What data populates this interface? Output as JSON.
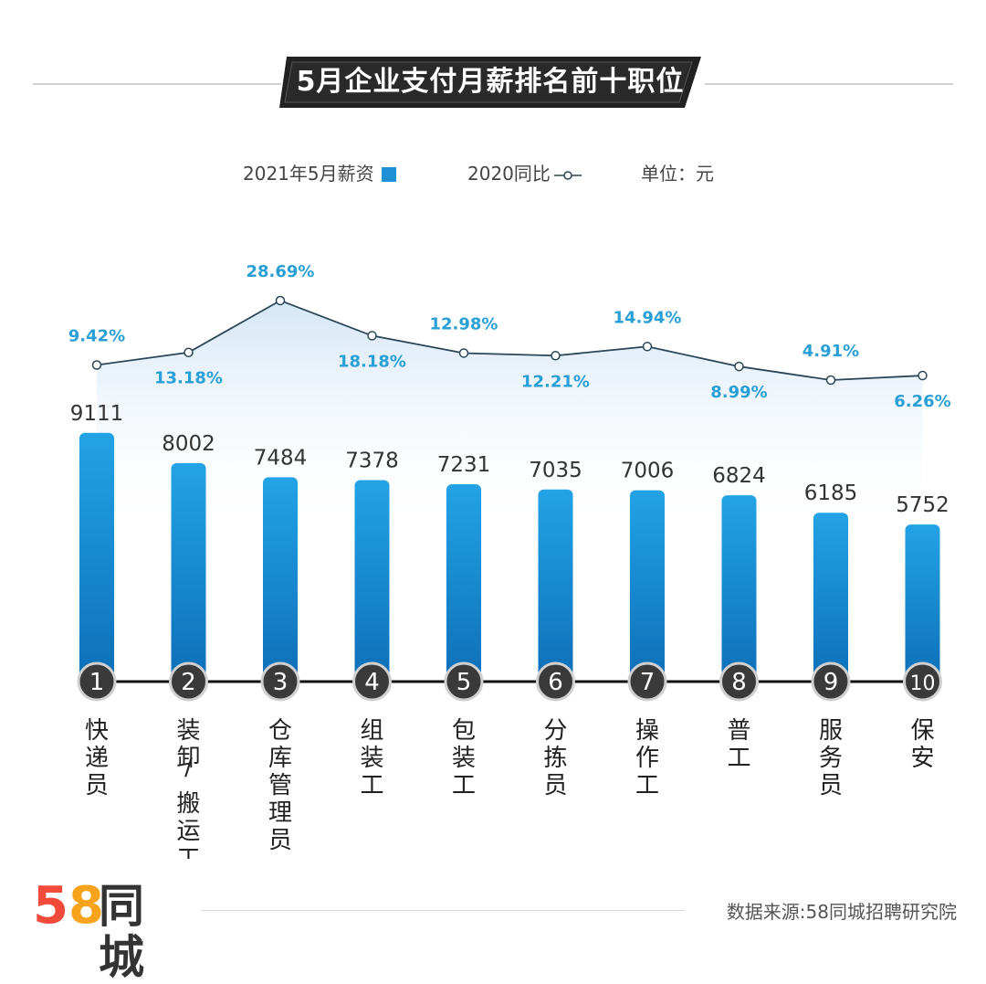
{
  "header": {
    "title": "5月企业支付月薪排名前十职位"
  },
  "legend": {
    "bar_label": "2021年5月薪资",
    "line_label": "2020同比",
    "unit_label": "单位：元"
  },
  "chart_data": {
    "type": "bar",
    "categories": [
      "快递员",
      "装卸/搬运工",
      "仓库管理员",
      "组装工",
      "包装工",
      "分拣员",
      "操作工",
      "普工",
      "服务员",
      "保安"
    ],
    "ranks": [
      "1",
      "2",
      "3",
      "4",
      "5",
      "6",
      "7",
      "8",
      "9",
      "10"
    ],
    "series": [
      {
        "name": "2021年5月薪资",
        "type": "bar",
        "values": [
          9111,
          8002,
          7484,
          7378,
          7231,
          7035,
          7006,
          6824,
          6185,
          5752
        ]
      },
      {
        "name": "2020同比",
        "type": "line",
        "values": [
          9.42,
          13.18,
          28.69,
          18.18,
          12.98,
          12.21,
          14.94,
          8.99,
          4.91,
          6.26
        ],
        "labels": [
          "9.42%",
          "13.18%",
          "28.69%",
          "18.18%",
          "12.98%",
          "12.21%",
          "14.94%",
          "8.99%",
          "4.91%",
          "6.26%"
        ],
        "label_side": [
          "above",
          "below",
          "above",
          "below",
          "above",
          "below",
          "above",
          "below",
          "above",
          "below"
        ]
      }
    ],
    "colors": {
      "bar": "#1f8fd6",
      "line": "#2b4656",
      "label": "#2a9fd6"
    }
  },
  "footer": {
    "logo_digits": "58",
    "logo_text": "同城",
    "source": "数据来源:58同城招聘研究院"
  }
}
